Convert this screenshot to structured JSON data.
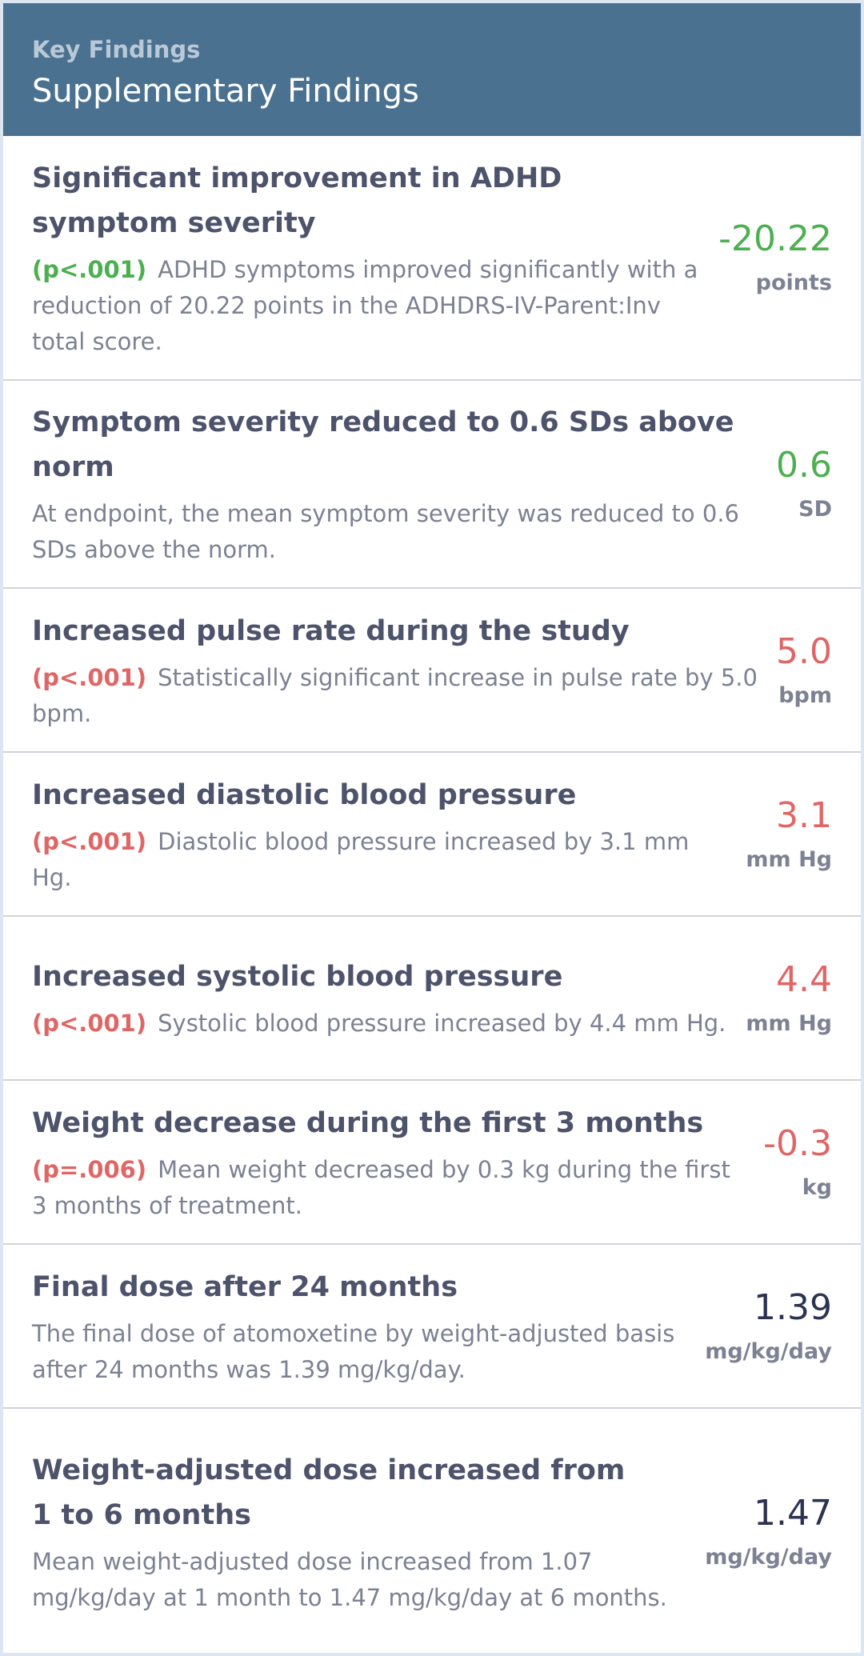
{
  "header": {
    "subtitle": "Key Findings",
    "title": "Supplementary Findings"
  },
  "colors": {
    "header_bg": "#4b7190",
    "positive": "#4caf50",
    "negative": "#e06666",
    "neutral": "#2c3350"
  },
  "findings": [
    {
      "label": "Significant improvement in ADHD symptom severity",
      "pvalue": "(p<.001)",
      "description": "ADHD symptoms improved significantly with a reduction of 20.22 points in the ADHDRS-IV-Parent:Inv total score.",
      "value": "-20.22",
      "unit": "points",
      "tone": "green"
    },
    {
      "label": "Symptom severity reduced to 0.6 SDs above norm",
      "pvalue": "",
      "description": "At endpoint, the mean symptom severity was reduced to 0.6 SDs above the norm.",
      "value": "0.6",
      "unit": "SD",
      "tone": "green"
    },
    {
      "label": "Increased pulse rate during the study",
      "pvalue": "(p<.001)",
      "description": "Statistically significant increase in pulse rate by 5.0 bpm.",
      "value": "5.0",
      "unit": "bpm",
      "tone": "red"
    },
    {
      "label": "Increased diastolic blood pressure",
      "pvalue": "(p<.001)",
      "description": "Diastolic blood pressure increased by 3.1 mm Hg.",
      "value": "3.1",
      "unit": "mm Hg",
      "tone": "red"
    },
    {
      "label": "Increased systolic blood pressure",
      "pvalue": "(p<.001)",
      "description": "Systolic blood pressure increased by 4.4 mm Hg.",
      "value": "4.4",
      "unit": "mm Hg",
      "tone": "red"
    },
    {
      "label": "Weight decrease during the first 3 months",
      "pvalue": "(p=.006)",
      "description": "Mean weight decreased by 0.3 kg during the first 3 months of treatment.",
      "value": "-0.3",
      "unit": "kg",
      "tone": "red"
    },
    {
      "label": "Final dose after 24 months",
      "pvalue": "",
      "description": "The final dose of atomoxetine by weight-adjusted basis after 24 months was 1.39 mg/kg/day.",
      "value": "1.39",
      "unit": "mg/kg/day",
      "tone": "dark"
    },
    {
      "label": "Weight-adjusted dose increased from 1 to 6 months",
      "pvalue": "",
      "description": "Mean weight-adjusted dose increased from 1.07 mg/kg/day at 1 month to 1.47 mg/kg/day at 6 months.",
      "value": "1.47",
      "unit": "mg/kg/day",
      "tone": "dark"
    }
  ]
}
